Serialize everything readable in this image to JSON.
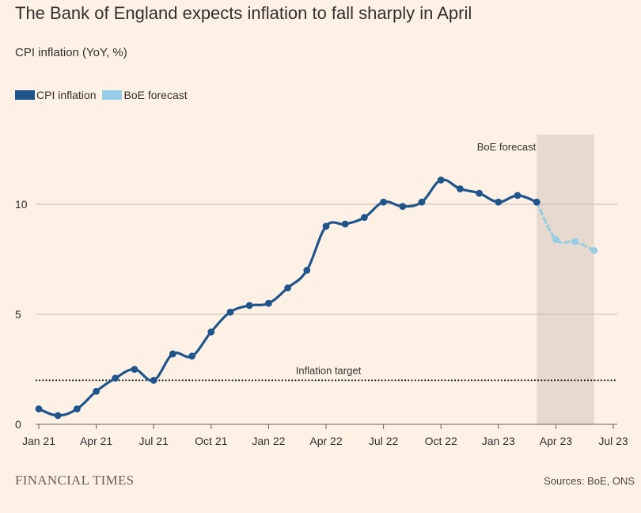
{
  "header": {
    "title": "The Bank of England expects inflation to fall sharply in April",
    "subtitle": "CPI inflation (YoY, %)"
  },
  "legend": [
    {
      "label": "CPI inflation",
      "color": "#1e558c"
    },
    {
      "label": "BoE forecast",
      "color": "#96cce6"
    }
  ],
  "chart_data": {
    "type": "line",
    "x_tick_labels": [
      "Jan 21",
      "Apr 21",
      "Jul 21",
      "Oct 21",
      "Jan 22",
      "Apr 22",
      "Jul 22",
      "Oct 22",
      "Jan 23",
      "Apr 23",
      "Jul 23"
    ],
    "y_ticks": [
      0,
      5,
      10
    ],
    "ylim": [
      0,
      12.5
    ],
    "grid": "horizontal",
    "series": [
      {
        "name": "CPI inflation",
        "style": "solid",
        "color": "#1e558c",
        "x": [
          "Jan 21",
          "Feb 21",
          "Mar 21",
          "Apr 21",
          "May 21",
          "Jun 21",
          "Jul 21",
          "Aug 21",
          "Sep 21",
          "Oct 21",
          "Nov 21",
          "Dec 21",
          "Jan 22",
          "Feb 22",
          "Mar 22",
          "Apr 22",
          "May 22",
          "Jun 22",
          "Jul 22",
          "Aug 22",
          "Sep 22",
          "Oct 22",
          "Nov 22",
          "Dec 22",
          "Jan 23",
          "Feb 23",
          "Mar 23"
        ],
        "values": [
          0.7,
          0.4,
          0.7,
          1.5,
          2.1,
          2.5,
          2.0,
          3.2,
          3.1,
          4.2,
          5.1,
          5.4,
          5.5,
          6.2,
          7.0,
          9.0,
          9.1,
          9.4,
          10.1,
          9.9,
          10.1,
          11.1,
          10.7,
          10.5,
          10.1,
          10.4,
          10.1
        ]
      },
      {
        "name": "BoE forecast",
        "style": "dashed",
        "color": "#96cce6",
        "x": [
          "Mar 23",
          "Apr 23",
          "May 23",
          "Jun 23"
        ],
        "values": [
          10.1,
          8.4,
          8.3,
          7.9
        ]
      }
    ],
    "shaded_region": {
      "label": "BoE forecast",
      "from": "Mar 23",
      "to": "Jun 23",
      "color": "#e6d9ce"
    },
    "reference_line": {
      "label": "Inflation target",
      "value": 2,
      "style": "dotted"
    }
  },
  "footer": {
    "brand": "FINANCIAL TIMES",
    "source": "Sources: BoE, ONS"
  }
}
